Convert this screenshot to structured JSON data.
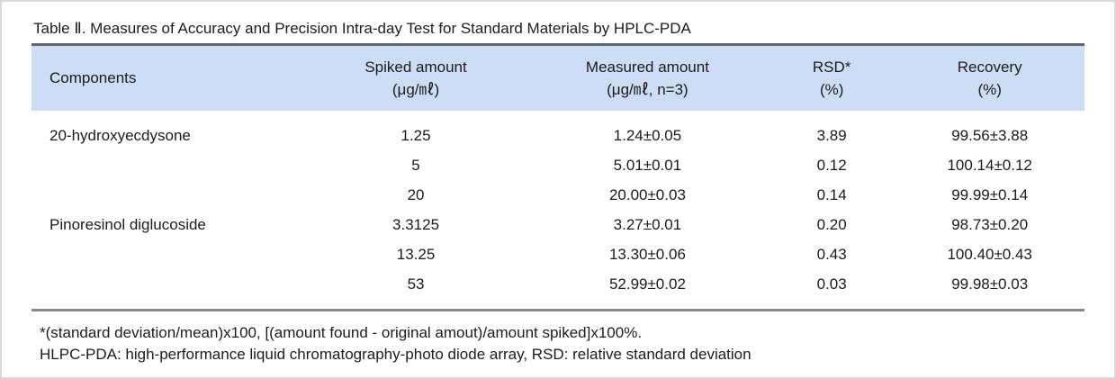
{
  "title": "Table Ⅱ. Measures of Accuracy and Precision Intra-day Test for Standard Materials by HPLC-PDA",
  "table": {
    "columns": [
      {
        "label": "Components",
        "sub": ""
      },
      {
        "label": "Spiked amount",
        "sub": "(μg/㎖)"
      },
      {
        "label": "Measured amount",
        "sub": "(μg/㎖, n=3)"
      },
      {
        "label": "RSD*",
        "sub": "(%)"
      },
      {
        "label": "Recovery",
        "sub": "(%)"
      }
    ],
    "rows": [
      {
        "component": "20-hydroxyecdysone",
        "spiked": "1.25",
        "measured": "1.24±0.05",
        "rsd": "3.89",
        "recovery": "99.56±3.88"
      },
      {
        "component": "",
        "spiked": "5",
        "measured": "5.01±0.01",
        "rsd": "0.12",
        "recovery": "100.14±0.12"
      },
      {
        "component": "",
        "spiked": "20",
        "measured": "20.00±0.03",
        "rsd": "0.14",
        "recovery": "99.99±0.14"
      },
      {
        "component": "Pinoresinol diglucoside",
        "spiked": "3.3125",
        "measured": "3.27±0.01",
        "rsd": "0.20",
        "recovery": "98.73±0.20"
      },
      {
        "component": "",
        "spiked": "13.25",
        "measured": "13.30±0.06",
        "rsd": "0.43",
        "recovery": "100.40±0.43"
      },
      {
        "component": "",
        "spiked": "53",
        "measured": "52.99±0.02",
        "rsd": "0.03",
        "recovery": "99.98±0.03"
      }
    ]
  },
  "footnotes": [
    "*(standard deviation/mean)x100, [(amount found - original amout)/amount spiked]x100%.",
    "HLPC-PDA: high-performance liquid chromatography-photo diode array, RSD: relative standard deviation"
  ],
  "colors": {
    "header_bg": "#cdddf6",
    "top_rule": "#5f656b",
    "bottom_rule": "#85888b",
    "text": "#1b1b1b",
    "frame_border": "#d8d8d8"
  }
}
